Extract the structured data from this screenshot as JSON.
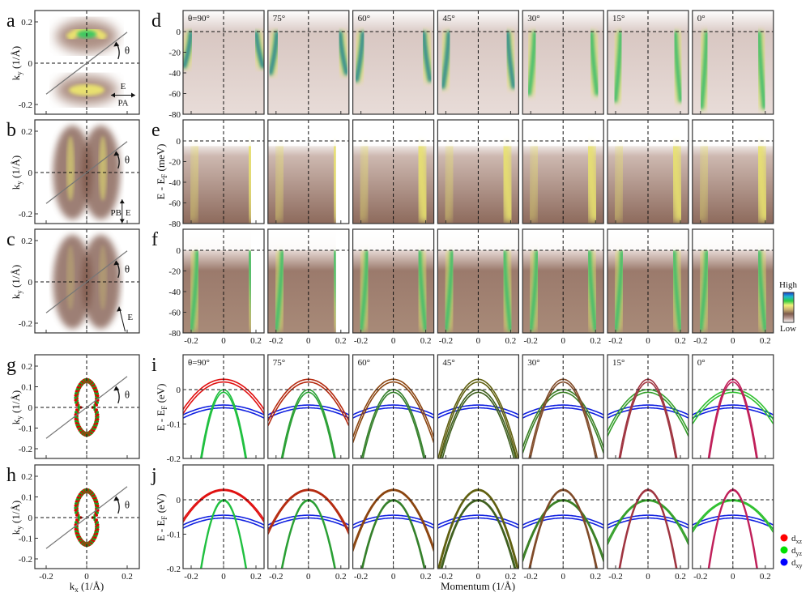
{
  "figure": {
    "panel_letters": {
      "a": "a",
      "b": "b",
      "c": "c",
      "d": "d",
      "e": "e",
      "f": "f",
      "g": "g",
      "h": "h",
      "i": "i",
      "j": "j"
    },
    "left_ylabel": "k",
    "left_ylabel_sub": "y",
    "left_ylabel_unit": " (1/Å)",
    "left_xlabel": "k",
    "left_xlabel_sub": "x",
    "left_xlabel_unit": " (1/Å)",
    "theta_symbol": "θ",
    "polarization_labels": {
      "a_E": "E",
      "a_PA": "PA",
      "b_PB": "PB",
      "b_E": "E",
      "c_E": "E"
    },
    "ylabel_mev": "E - E",
    "ylabel_mev_sub": "F",
    "ylabel_mev_unit": " (meV)",
    "ylabel_ev": "E - E",
    "ylabel_ev_sub": "F",
    "ylabel_ev_unit": " (eV)",
    "xlabel_momentum": "Momentum (1/Å)",
    "colorbar": {
      "high": "High",
      "low": "Low",
      "colors": [
        "#1a3cc8",
        "#1fb8d0",
        "#2ecc40",
        "#f2f07a",
        "#c9b070",
        "#7d5a4c",
        "#b89a94",
        "#ffffff"
      ]
    },
    "legend": [
      {
        "label": "d",
        "sub": "xz",
        "color": "#ff0000"
      },
      {
        "label": "d",
        "sub": "yz",
        "color": "#00e000"
      },
      {
        "label": "d",
        "sub": "xy",
        "color": "#0000ff"
      }
    ]
  },
  "chart_data": [
    {
      "type": "heatmap",
      "panels": [
        "a",
        "b",
        "c"
      ],
      "description_axis": "Fermi surface maps",
      "xlim": [
        -0.25,
        0.25
      ],
      "ylim": [
        -0.25,
        0.25
      ],
      "x_ticks": [
        "-0.2",
        "0",
        "0.2"
      ],
      "y_ticks": [
        "0.2",
        "0",
        "-0.2"
      ],
      "y_tick_values": [
        0.2,
        0,
        -0.2
      ],
      "x_tick_values": [
        -0.2,
        0,
        0.2
      ]
    },
    {
      "type": "heatmap",
      "rows": [
        "d",
        "e",
        "f"
      ],
      "angle_labels": [
        "θ=90°",
        "75°",
        "60°",
        "45°",
        "30°",
        "15°",
        "0°"
      ],
      "angles": [
        90,
        75,
        60,
        45,
        30,
        15,
        0
      ],
      "xlim": [
        -0.25,
        0.25
      ],
      "ylim": [
        -80,
        20
      ],
      "x_ticks": [
        "-0.2",
        "0",
        "0.2"
      ],
      "x_tick_values": [
        -0.2,
        0,
        0.2
      ],
      "y_ticks": [
        "0",
        "-20",
        "-40",
        "-60",
        "-80"
      ],
      "y_tick_values": [
        0,
        -20,
        -40,
        -60,
        -80
      ]
    },
    {
      "type": "scatter",
      "panels": [
        "g",
        "h"
      ],
      "xlim": [
        -0.25,
        0.25
      ],
      "ylim": [
        -0.25,
        0.25
      ],
      "x_ticks": [
        "-0.2",
        "0",
        "0.2"
      ],
      "x_tick_values": [
        -0.2,
        0,
        0.2
      ],
      "y_ticks": [
        "0.2",
        "0.1",
        "0",
        "-0.1",
        "-0.2"
      ],
      "y_tick_values": [
        0.2,
        0.1,
        0,
        -0.1,
        -0.2
      ],
      "contour_colors": [
        "#e00000",
        "#20a020"
      ]
    },
    {
      "type": "line",
      "rows": [
        "i",
        "j"
      ],
      "angle_labels": [
        "θ=90°",
        "75°",
        "60°",
        "45°",
        "30°",
        "15°",
        "0°"
      ],
      "angles": [
        90,
        75,
        60,
        45,
        30,
        15,
        0
      ],
      "xlim": [
        -0.25,
        0.25
      ],
      "ylim": [
        -0.2,
        0.1
      ],
      "x_ticks": [
        "-0.2",
        "0",
        "0.2"
      ],
      "x_tick_values": [
        -0.2,
        0,
        0.2
      ],
      "y_ticks": [
        "0",
        "-0.1",
        "-0.2"
      ],
      "y_tick_values": [
        0,
        -0.1,
        -0.2
      ],
      "bands": {
        "dxz_peak_eV": 0.03,
        "dxz_curvature_at_90": 1.4,
        "dxz_curvature_at_0": 10,
        "dyz_peak_eV": 0.0,
        "dyz_curvature_at_90": 10,
        "dyz_curvature_at_0": 1.4,
        "dxy_peak_eV": -0.045,
        "dxy_curvature": 0.45,
        "splitting_eV": 0.008
      }
    }
  ]
}
